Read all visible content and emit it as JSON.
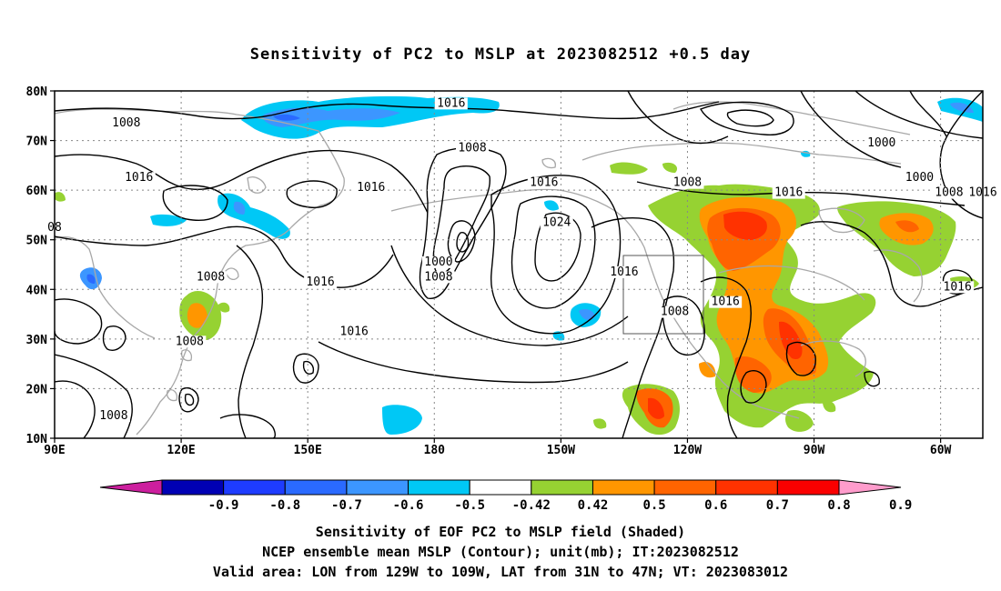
{
  "title": "Sensitivity of PC2 to MSLP at 2023082512 +0.5 day",
  "footer": {
    "line1": "Sensitivity of EOF PC2 to MSLP field (Shaded)",
    "line2": "NCEP ensemble mean MSLP (Contour); unit(mb); IT:2023082512",
    "line3": "Valid area: LON from 129W to 109W, LAT from 31N to 47N; VT: 2023083012"
  },
  "axes": {
    "lat_labels": [
      "10N",
      "20N",
      "30N",
      "40N",
      "50N",
      "60N",
      "70N",
      "80N"
    ],
    "lon_labels": [
      "90E",
      "120E",
      "150E",
      "180",
      "150W",
      "120W",
      "90W",
      "60W"
    ],
    "lat_range": [
      10,
      80
    ],
    "lon_range_east": [
      90,
      310
    ],
    "grid": "dotted"
  },
  "valid_area": {
    "lon_w": [
      129,
      109
    ],
    "lat_n": [
      31,
      47
    ]
  },
  "colorbar": {
    "labels": [
      "-0.9",
      "-0.8",
      "-0.7",
      "-0.6",
      "-0.5",
      "-0.42",
      "0.42",
      "0.5",
      "0.6",
      "0.7",
      "0.8",
      "0.9"
    ],
    "colors": [
      "#cc1f9e",
      "#0000b4",
      "#1e3cff",
      "#2a6aff",
      "#3c96ff",
      "#00c8f5",
      "#ffffff",
      "#96d232",
      "#ff9600",
      "#ff6400",
      "#ff3200",
      "#fa0000",
      "#ff9ccc"
    ]
  },
  "contour_labels": [
    {
      "text": "1008",
      "lon": 107,
      "lat": 73
    },
    {
      "text": "1016",
      "lon": 110,
      "lat": 62
    },
    {
      "text": "08",
      "lon": 90,
      "lat": 52
    },
    {
      "text": "1008",
      "lon": 127,
      "lat": 42
    },
    {
      "text": "1016",
      "lon": 153,
      "lat": 41
    },
    {
      "text": "1008",
      "lon": 122,
      "lat": 29
    },
    {
      "text": "1008",
      "lon": 104,
      "lat": 14
    },
    {
      "text": "1016",
      "lon": 184,
      "lat": 77
    },
    {
      "text": "1016",
      "lon": 165,
      "lat": 60
    },
    {
      "text": "1008",
      "lon": 189,
      "lat": 68
    },
    {
      "text": "1016",
      "lon": 206,
      "lat": 61
    },
    {
      "text": "1024",
      "lon": 209,
      "lat": 53
    },
    {
      "text": "1000",
      "lon": 181,
      "lat": 45
    },
    {
      "text": "1008",
      "lon": 181,
      "lat": 42
    },
    {
      "text": "1016",
      "lon": 225,
      "lat": 43
    },
    {
      "text": "1016",
      "lon": 161,
      "lat": 31
    },
    {
      "text": "1008",
      "lon": 237,
      "lat": 35
    },
    {
      "text": "1016",
      "lon": 249,
      "lat": 37
    },
    {
      "text": "1008",
      "lon": 240,
      "lat": 61
    },
    {
      "text": "1016",
      "lon": 264,
      "lat": 59
    },
    {
      "text": "1000",
      "lon": 286,
      "lat": 69
    },
    {
      "text": "1000",
      "lon": 295,
      "lat": 62
    },
    {
      "text": "1008",
      "lon": 302,
      "lat": 59
    },
    {
      "text": "1016",
      "lon": 310,
      "lat": 59
    },
    {
      "text": "1016",
      "lon": 304,
      "lat": 40
    }
  ]
}
